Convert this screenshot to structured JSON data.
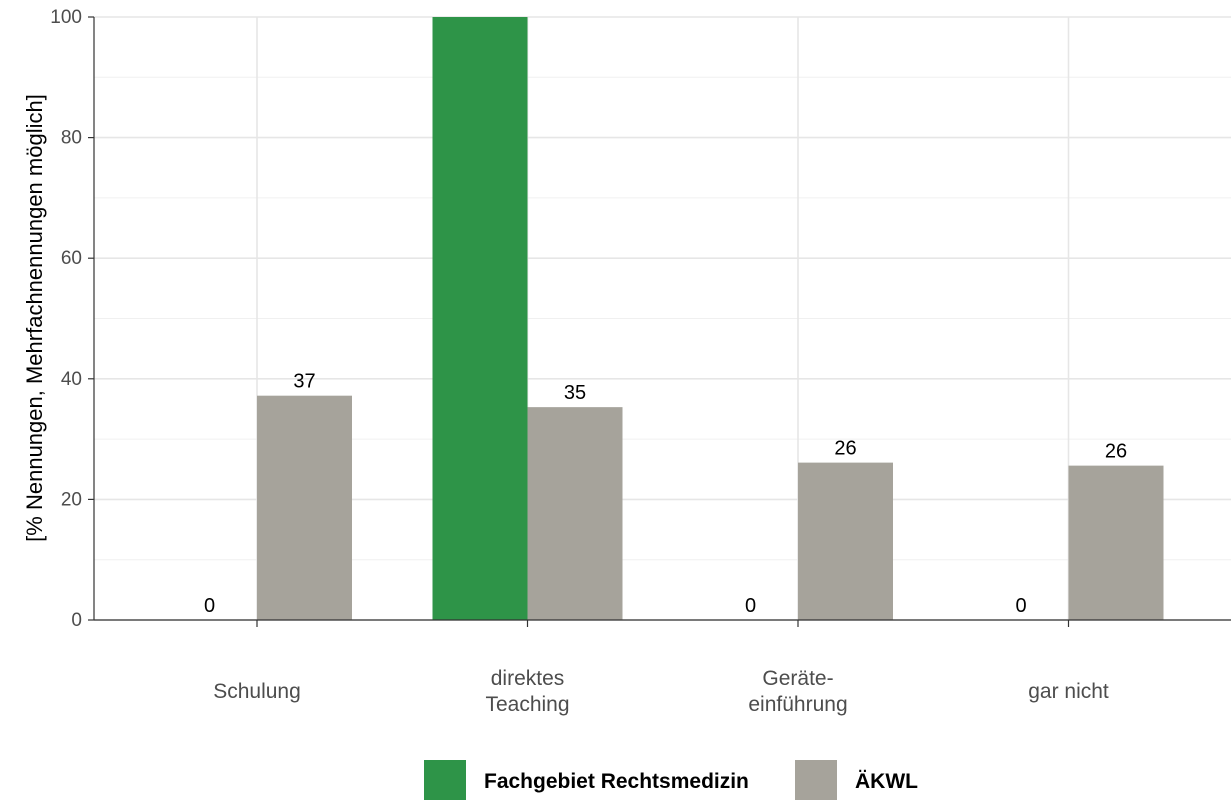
{
  "chart_data": {
    "type": "bar",
    "ylabel": "[% Nennungen, Mehrfachnennungen möglich]",
    "xlabel": "",
    "ylim": [
      0,
      100
    ],
    "yticks": [
      0,
      20,
      40,
      60,
      80,
      100
    ],
    "grid": true,
    "legend_position": "bottom",
    "categories": [
      [
        "Schulung"
      ],
      [
        "direktes",
        "Teaching"
      ],
      [
        "Geräte-",
        "einführung"
      ],
      [
        "gar nicht"
      ]
    ],
    "series": [
      {
        "name": "Fachgebiet Rechtsmedizin",
        "color": "#2e9448",
        "values": [
          0,
          100,
          0,
          0
        ],
        "labels": [
          "0",
          "",
          "0",
          "0"
        ]
      },
      {
        "name": "ÄKWL",
        "color": "#a6a39b",
        "values": [
          37.2,
          35.3,
          26.1,
          25.6
        ],
        "labels": [
          "37",
          "35",
          "26",
          "26"
        ]
      }
    ]
  }
}
